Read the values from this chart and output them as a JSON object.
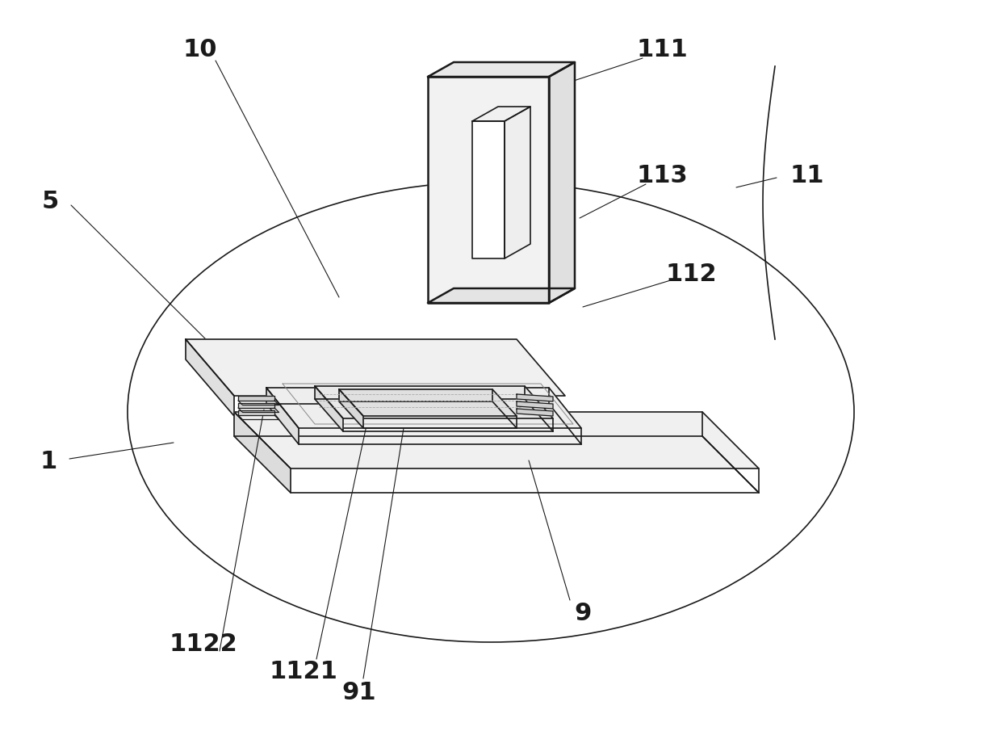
{
  "bg_color": "#ffffff",
  "lc": "#1a1a1a",
  "lw": 1.2,
  "tlw": 1.8,
  "fig_width": 12.4,
  "fig_height": 9.31,
  "label_fontsize": 22,
  "label_fontweight": "bold",
  "ann_lw": 0.8
}
